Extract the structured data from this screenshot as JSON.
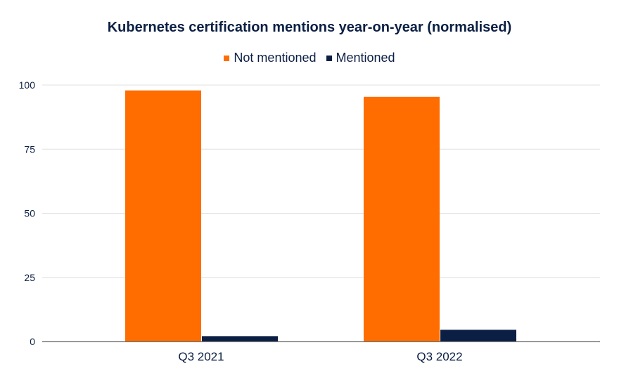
{
  "chart_data": {
    "type": "bar",
    "title": "Kubernetes certification mentions year-on-year (normalised)",
    "categories": [
      "Q3 2021",
      "Q3 2022"
    ],
    "series": [
      {
        "name": "Not mentioned",
        "color": "#ff6d00",
        "values": [
          97.9,
          95.4
        ]
      },
      {
        "name": "Mentioned",
        "color": "#0b1f44",
        "values": [
          2.1,
          4.6
        ]
      }
    ],
    "ylim": [
      0,
      100
    ],
    "yticks": [
      "0",
      "25",
      "50",
      "75",
      "100"
    ],
    "xlabel": "",
    "ylabel": "",
    "grid": true,
    "legend_position": "top-center"
  }
}
